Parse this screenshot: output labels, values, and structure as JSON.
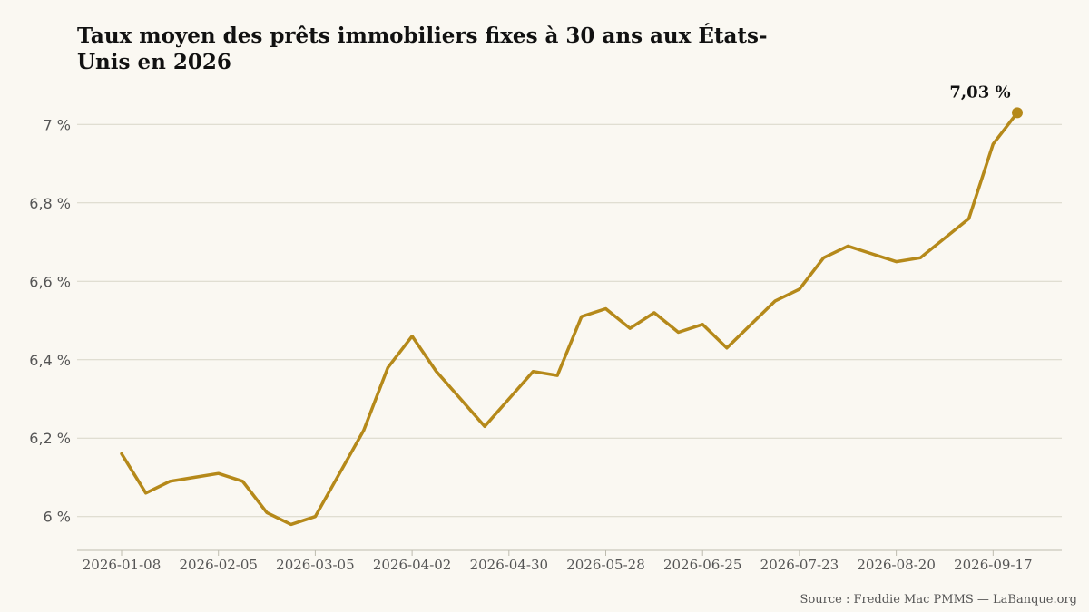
{
  "chart_data": {
    "type": "line",
    "title_lines": [
      "Taux moyen des prêts immobiliers fixes à 30 ans aux États-",
      "Unis en 2026"
    ],
    "xlabel": "",
    "ylabel": "",
    "ylim": [
      5.93,
      7.04
    ],
    "y_ticks": [
      6.0,
      6.2,
      6.4,
      6.6,
      6.8,
      7.0
    ],
    "y_tick_labels": [
      "6 %",
      "6,2 %",
      "6,4 %",
      "6,6 %",
      "6,8 %",
      "7 %"
    ],
    "x_ticks": [
      "2026-01-08",
      "2026-02-05",
      "2026-03-05",
      "2026-04-02",
      "2026-04-30",
      "2026-05-28",
      "2026-06-25",
      "2026-07-23",
      "2026-08-20",
      "2026-09-17"
    ],
    "grid": "horizontal",
    "series": [
      {
        "color": "#b5891a",
        "points": [
          {
            "x": "2026-01-08",
            "y": 6.16
          },
          {
            "x": "2026-01-15",
            "y": 6.06
          },
          {
            "x": "2026-01-22",
            "y": 6.09
          },
          {
            "x": "2026-01-29",
            "y": 6.1
          },
          {
            "x": "2026-02-05",
            "y": 6.11
          },
          {
            "x": "2026-02-12",
            "y": 6.09
          },
          {
            "x": "2026-02-19",
            "y": 6.01
          },
          {
            "x": "2026-02-26",
            "y": 5.98
          },
          {
            "x": "2026-03-05",
            "y": 6.0
          },
          {
            "x": "2026-03-12",
            "y": 6.11
          },
          {
            "x": "2026-03-19",
            "y": 6.22
          },
          {
            "x": "2026-03-26",
            "y": 6.38
          },
          {
            "x": "2026-04-02",
            "y": 6.46
          },
          {
            "x": "2026-04-09",
            "y": 6.37
          },
          {
            "x": "2026-04-16",
            "y": 6.3
          },
          {
            "x": "2026-04-23",
            "y": 6.23
          },
          {
            "x": "2026-04-30",
            "y": 6.3
          },
          {
            "x": "2026-05-07",
            "y": 6.37
          },
          {
            "x": "2026-05-14",
            "y": 6.36
          },
          {
            "x": "2026-05-21",
            "y": 6.51
          },
          {
            "x": "2026-05-28",
            "y": 6.53
          },
          {
            "x": "2026-06-04",
            "y": 6.48
          },
          {
            "x": "2026-06-11",
            "y": 6.52
          },
          {
            "x": "2026-06-18",
            "y": 6.47
          },
          {
            "x": "2026-06-25",
            "y": 6.49
          },
          {
            "x": "2026-07-02",
            "y": 6.43
          },
          {
            "x": "2026-07-09",
            "y": 6.49
          },
          {
            "x": "2026-07-16",
            "y": 6.55
          },
          {
            "x": "2026-07-23",
            "y": 6.58
          },
          {
            "x": "2026-07-30",
            "y": 6.66
          },
          {
            "x": "2026-08-06",
            "y": 6.69
          },
          {
            "x": "2026-08-13",
            "y": 6.67
          },
          {
            "x": "2026-08-20",
            "y": 6.65
          },
          {
            "x": "2026-08-27",
            "y": 6.66
          },
          {
            "x": "2026-09-03",
            "y": 6.71
          },
          {
            "x": "2026-09-10",
            "y": 6.76
          },
          {
            "x": "2026-09-17",
            "y": 6.95
          },
          {
            "x": "2026-09-24",
            "y": 7.03
          }
        ]
      }
    ],
    "annotation": {
      "x": "2026-09-24",
      "y": 7.03,
      "label": "7,03 %"
    },
    "source": "Source : Freddie Mac PMMS — LaBanque.org"
  }
}
